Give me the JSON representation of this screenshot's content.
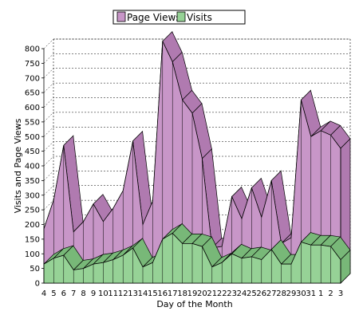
{
  "chart_data": {
    "type": "area",
    "xlabel": "Day of the Month",
    "ylabel": "Visits and Page Views",
    "ylim": [
      0,
      800
    ],
    "yticks": [
      0,
      50,
      100,
      150,
      200,
      250,
      300,
      350,
      400,
      450,
      500,
      550,
      600,
      650,
      700,
      750,
      800
    ],
    "categories": [
      "4",
      "5",
      "6",
      "7",
      "8",
      "9",
      "10",
      "11",
      "12",
      "13",
      "14",
      "15",
      "16",
      "17",
      "18",
      "19",
      "20",
      "21",
      "22",
      "23",
      "24",
      "25",
      "26",
      "27",
      "28",
      "29",
      "30",
      "31",
      "1",
      "2",
      "3"
    ],
    "grid": true,
    "legend_position": "top",
    "series": [
      {
        "name": "Page Views",
        "color": "#c896c8",
        "values": [
          185,
          285,
          470,
          175,
          210,
          270,
          210,
          255,
          315,
          485,
          200,
          280,
          825,
          755,
          625,
          580,
          425,
          120,
          125,
          295,
          220,
          325,
          225,
          350,
          135,
          155,
          625,
          500,
          520,
          505,
          460
        ]
      },
      {
        "name": "Visits",
        "color": "#96d296",
        "values": [
          65,
          85,
          95,
          45,
          50,
          65,
          70,
          80,
          95,
          120,
          55,
          70,
          150,
          170,
          135,
          135,
          125,
          55,
          70,
          100,
          85,
          90,
          80,
          115,
          65,
          65,
          140,
          130,
          130,
          125,
          80
        ]
      }
    ]
  }
}
